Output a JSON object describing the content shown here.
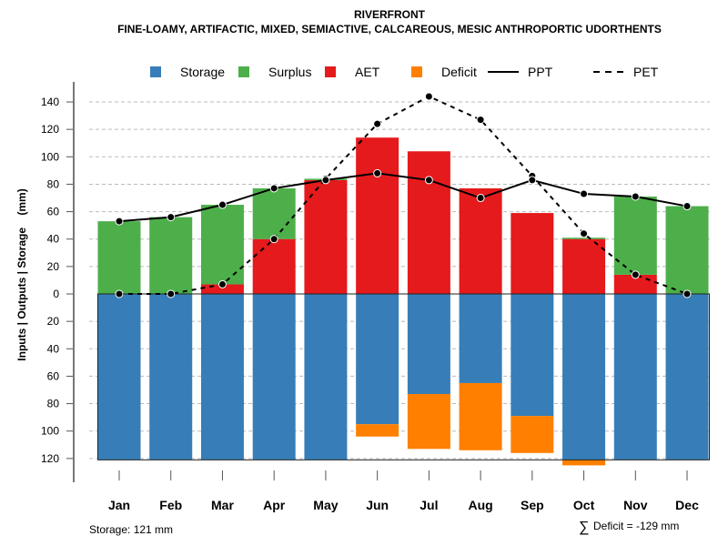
{
  "chart_data": {
    "type": "bar",
    "title": "RIVERFRONT",
    "subtitle": "FINE-LOAMY, ARTIFACTIC, MIXED, SEMIACTIVE, CALCAREOUS, MESIC ANTHROPORTIC UDORTHENTS",
    "ylabel": "Inputs | Outputs | Storage    (mm)",
    "xlabel": "",
    "ylim": [
      -121,
      140
    ],
    "yticks": [
      140,
      120,
      100,
      80,
      60,
      40,
      20,
      0,
      -20,
      -40,
      -60,
      -80,
      -100,
      -120
    ],
    "ytick_labels": [
      "140",
      "120",
      "100",
      "80",
      "60",
      "40",
      "20",
      "0",
      "20",
      "40",
      "60",
      "80",
      "100",
      "120"
    ],
    "grid": true,
    "legend_position": "top",
    "categories": [
      "Jan",
      "Feb",
      "Mar",
      "Apr",
      "May",
      "Jun",
      "Jul",
      "Aug",
      "Sep",
      "Oct",
      "Nov",
      "Dec"
    ],
    "series": [
      {
        "name": "Storage",
        "kind": "bar-below",
        "color": "#377EB8",
        "values": [
          121,
          121,
          121,
          121,
          121,
          95,
          73,
          65,
          89,
          121,
          121,
          121
        ]
      },
      {
        "name": "Surplus",
        "kind": "bar-stack",
        "color": "#4DAF4A",
        "values": [
          53,
          56,
          58,
          37,
          1,
          0,
          0,
          0,
          0,
          1,
          57,
          64
        ]
      },
      {
        "name": "AET",
        "kind": "bar-stack",
        "color": "#E41A1C",
        "values": [
          0,
          0,
          7,
          40,
          83,
          114,
          104,
          77,
          59,
          40,
          14,
          0
        ]
      },
      {
        "name": "Deficit",
        "kind": "bar-below",
        "color": "#FF7F00",
        "values": [
          0,
          0,
          0,
          0,
          0,
          9,
          40,
          49,
          27,
          4,
          0,
          0
        ]
      },
      {
        "name": "PPT",
        "kind": "line-solid",
        "color": "#000000",
        "values": [
          53,
          56,
          65,
          77,
          83,
          88,
          83,
          70,
          83,
          73,
          71,
          64
        ]
      },
      {
        "name": "PET",
        "kind": "line-dashed",
        "color": "#000000",
        "values": [
          0,
          0,
          7,
          40,
          84,
          124,
          144,
          127,
          86,
          44,
          14,
          0
        ]
      }
    ],
    "annotations": {
      "storage": "Storage: 121 mm",
      "deficit_symbol": "∑",
      "deficit": "Deficit = -129 mm"
    }
  }
}
